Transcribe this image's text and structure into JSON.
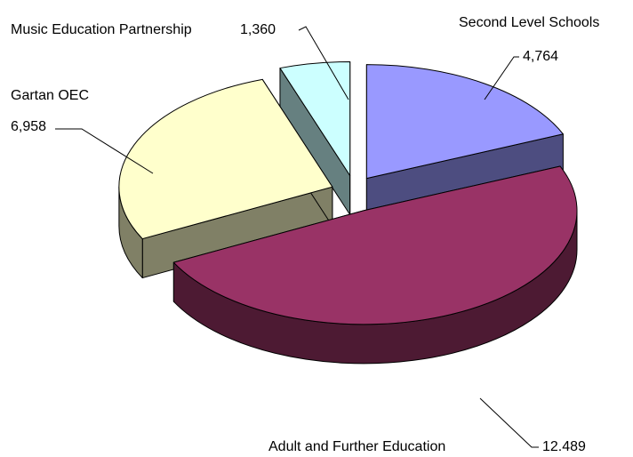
{
  "chart_data": {
    "type": "pie3d",
    "categories": [
      "Second Level Schools",
      "Adult and Further Education",
      "Gartan OEC",
      "Music Education Partnership"
    ],
    "values": [
      4764,
      12489,
      6958,
      1360
    ],
    "value_labels": [
      "4,764",
      "12.489",
      "6,958",
      "1,360"
    ],
    "colors": [
      "#9999ff",
      "#993366",
      "#ffffcc",
      "#ccffff"
    ],
    "side_colors": [
      "#4d4d80",
      "#4d1a33",
      "#808066",
      "#668080"
    ]
  }
}
